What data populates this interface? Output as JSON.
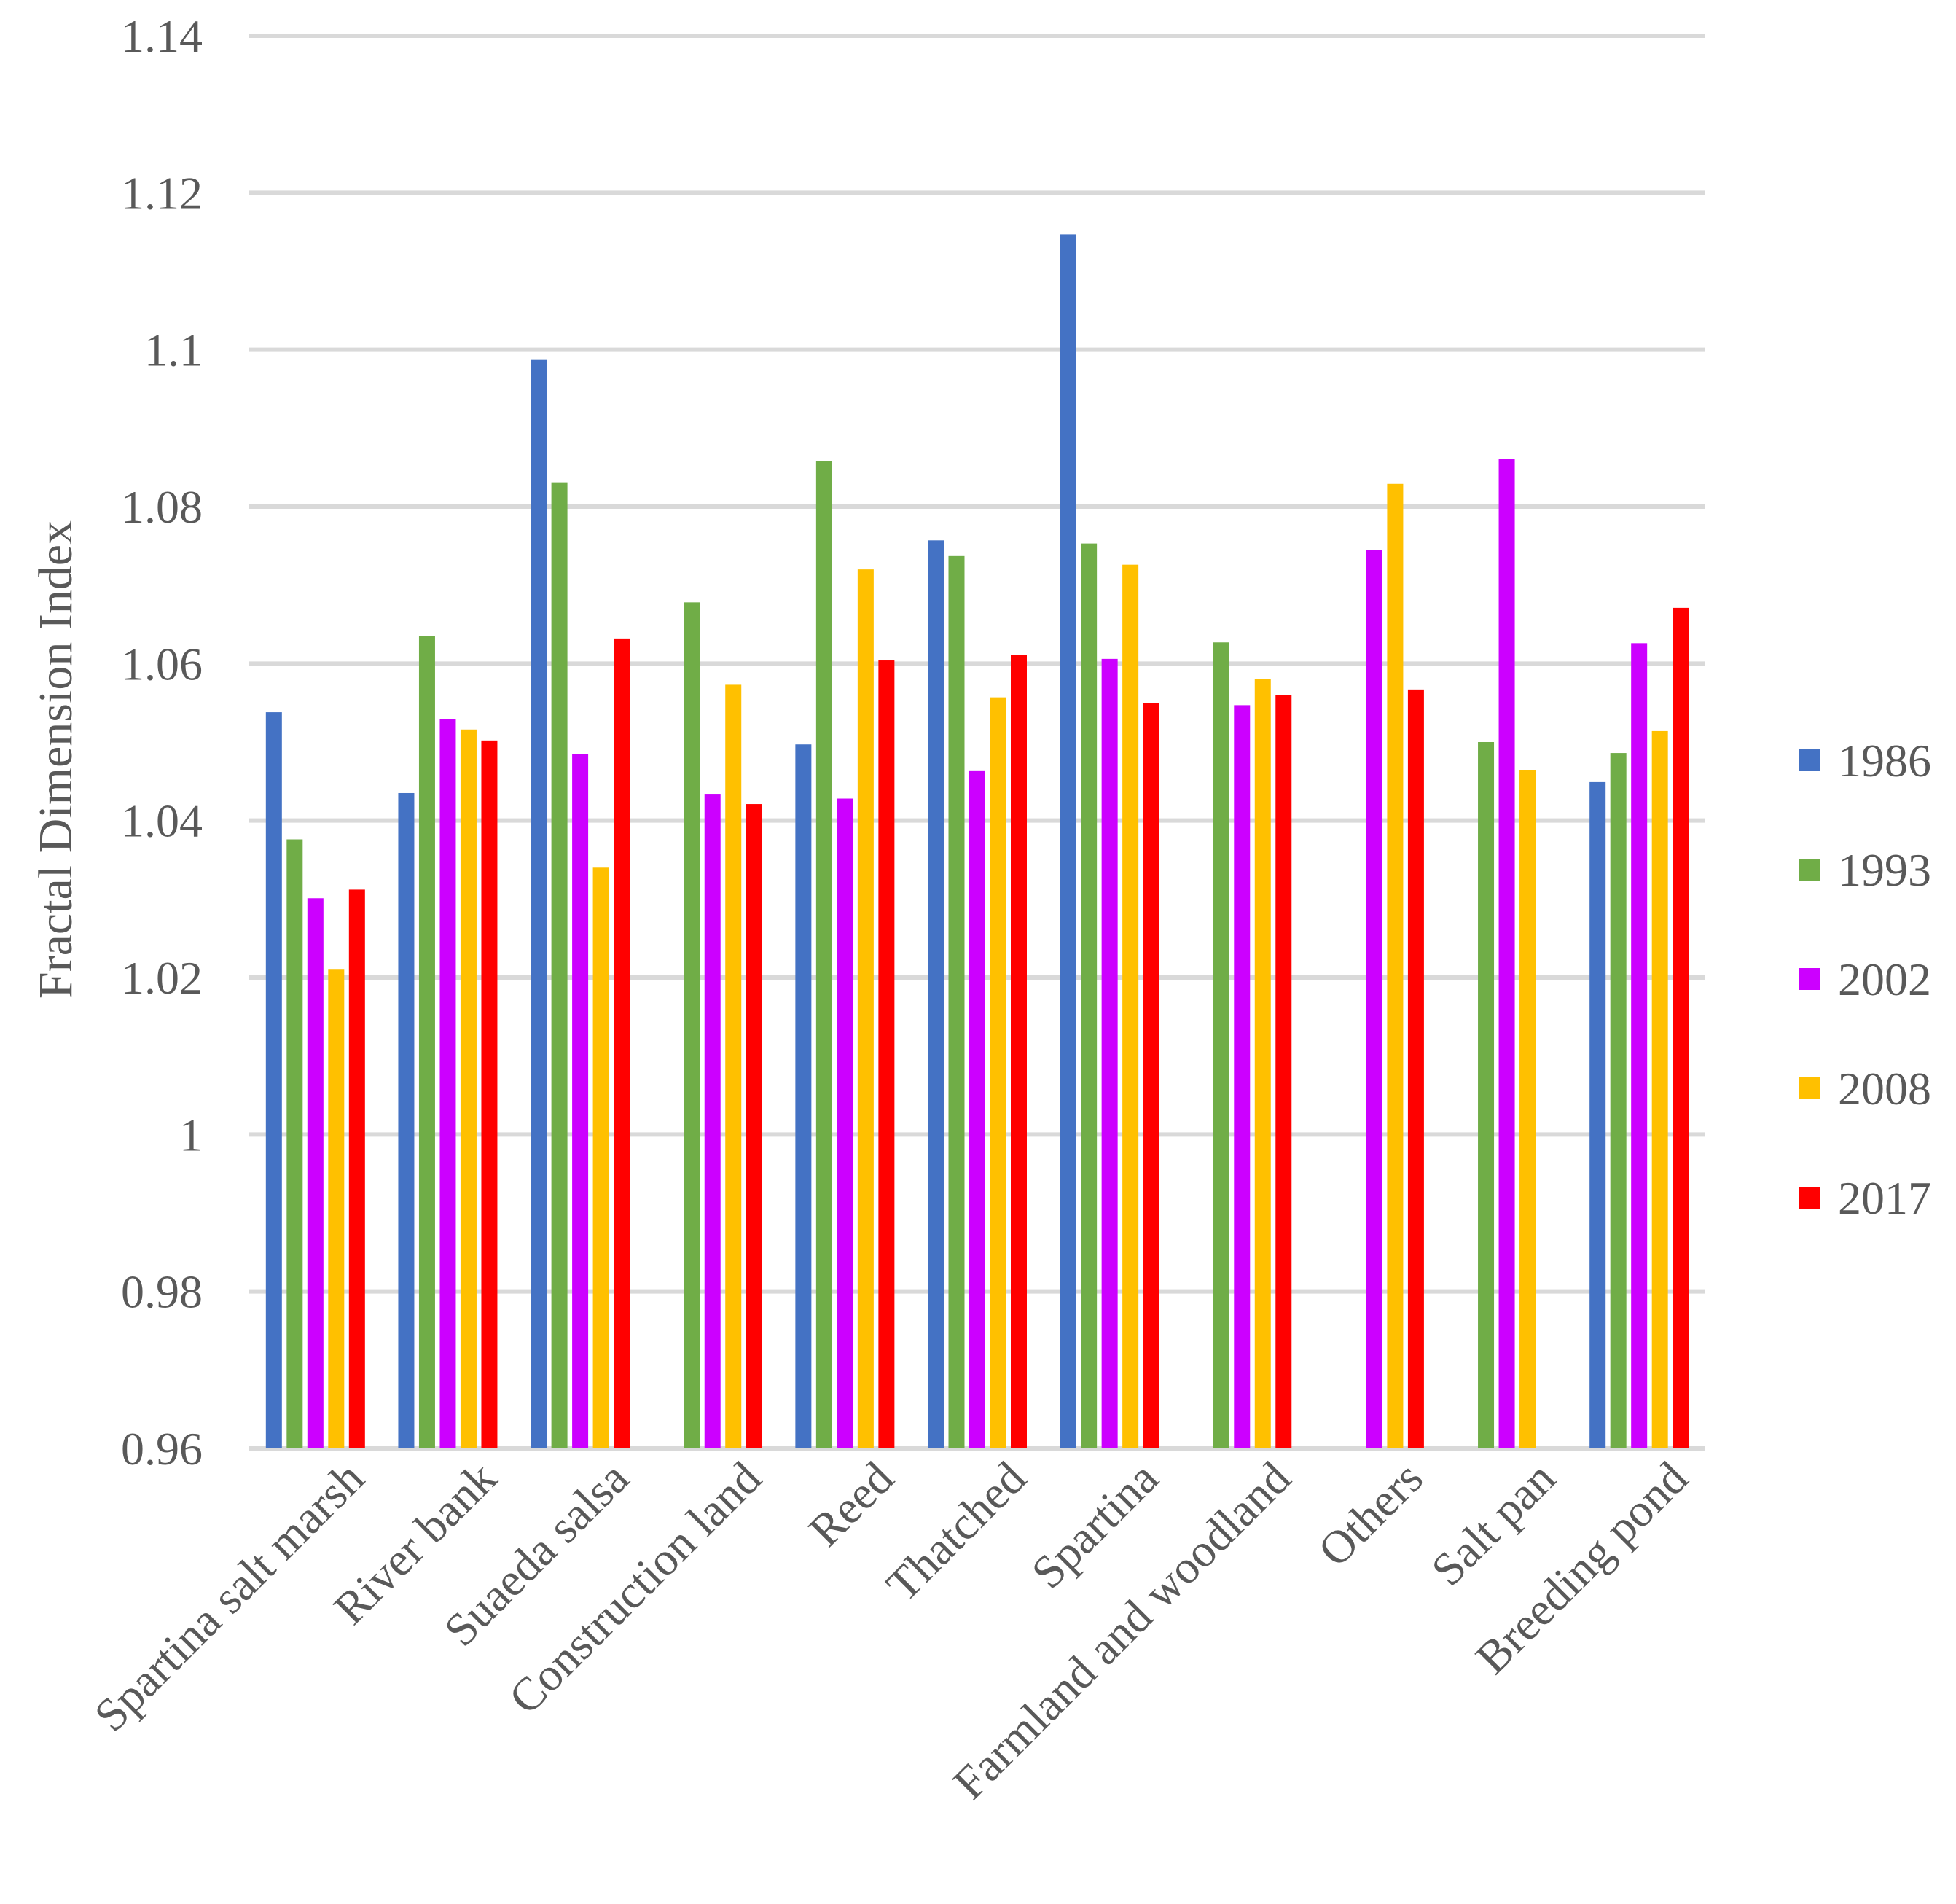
{
  "chart_data": {
    "type": "bar",
    "title": "",
    "xlabel": "",
    "ylabel": "Fractal Dimension Index",
    "ylim": [
      0.96,
      1.14
    ],
    "yticks": [
      0.96,
      0.98,
      1,
      1.02,
      1.04,
      1.06,
      1.08,
      1.1,
      1.12,
      1.14
    ],
    "ytick_labels": [
      "0.96",
      "0.98",
      "1",
      "1.02",
      "1.04",
      "1.06",
      "1.08",
      "1.1",
      "1.12",
      "1.14"
    ],
    "grid": true,
    "legend_position": "right",
    "categories": [
      "Spartina salt marsh",
      "River bank",
      "Suaeda salsa",
      "Construction land",
      "Reed",
      "Thatched",
      "Spartina",
      "Farmland and woodland",
      "Others",
      "Salt pan",
      "Breeding pond"
    ],
    "series": [
      {
        "name": "1986",
        "color": "#4472c4",
        "values": [
          1.0538,
          1.0435,
          1.0987,
          null,
          1.0497,
          1.0757,
          1.1147,
          null,
          null,
          null,
          1.0449
        ]
      },
      {
        "name": "1993",
        "color": "#70ad47",
        "values": [
          1.0376,
          1.0635,
          1.0831,
          1.0678,
          1.0858,
          1.0737,
          1.0753,
          1.0627,
          null,
          1.05,
          1.0486
        ]
      },
      {
        "name": "2002",
        "color": "#cc00ff",
        "values": [
          1.0301,
          1.0529,
          1.0485,
          1.0434,
          1.0428,
          1.0463,
          1.0606,
          1.0547,
          1.0745,
          1.0861,
          1.0626
        ]
      },
      {
        "name": "2008",
        "color": "#ffc000",
        "values": [
          1.021,
          1.0516,
          1.034,
          1.0573,
          1.072,
          1.0557,
          1.0726,
          1.058,
          1.0829,
          1.0464,
          1.0514
        ]
      },
      {
        "name": "2017",
        "color": "#ff0000",
        "values": [
          1.0312,
          1.0502,
          1.0632,
          1.0421,
          1.0604,
          1.0611,
          1.055,
          1.056,
          1.0567,
          null,
          1.0671
        ]
      }
    ]
  }
}
